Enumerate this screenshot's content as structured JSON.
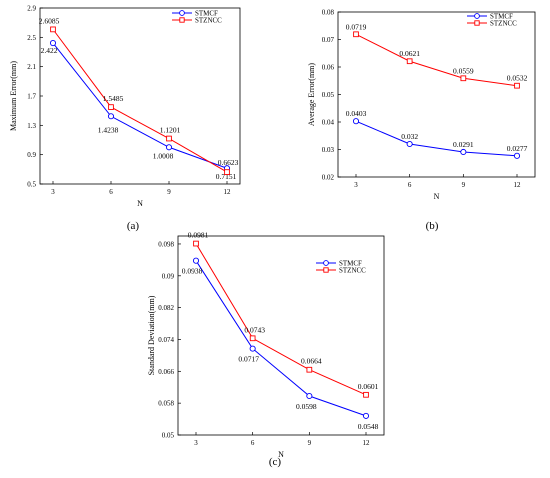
{
  "chart_data": [
    {
      "type": "line",
      "caption": "(a)",
      "xlabel": "N",
      "ylabel": "Maximum Error(mm)",
      "x": [
        3,
        6,
        9,
        12
      ],
      "xticks": [
        "3",
        "6",
        "9",
        "12"
      ],
      "ylim": [
        0.5,
        2.9
      ],
      "yticks": [
        "0.5",
        "0.9",
        "1.3",
        "1.7",
        "2.1",
        "2.5",
        "2.9"
      ],
      "legend_position": "top-right",
      "series": [
        {
          "name": "STMCF",
          "color": "#0000ff",
          "marker": "circle",
          "values": [
            2.422,
            1.4238,
            1.0008,
            0.7151
          ],
          "labels": [
            "2.422",
            "1.4238",
            "1.0008",
            "0.7151"
          ]
        },
        {
          "name": "STZNCC",
          "color": "#ff0000",
          "marker": "square",
          "values": [
            2.6085,
            1.5485,
            1.1201,
            0.6623
          ],
          "labels": [
            "2.6085",
            "1.5485",
            "1.1201",
            "0.6623"
          ]
        }
      ]
    },
    {
      "type": "line",
      "caption": "(b)",
      "xlabel": "N",
      "ylabel": "Average Error(mm)",
      "x": [
        3,
        6,
        9,
        12
      ],
      "xticks": [
        "3",
        "6",
        "9",
        "12"
      ],
      "ylim": [
        0.02,
        0.08
      ],
      "yticks": [
        "0.02",
        "0.03",
        "0.04",
        "0.05",
        "0.06",
        "0.07",
        "0.08"
      ],
      "legend_position": "top-right",
      "series": [
        {
          "name": "STMCF",
          "color": "#0000ff",
          "marker": "circle",
          "values": [
            0.0403,
            0.032,
            0.0291,
            0.0277
          ],
          "labels": [
            "0.0403",
            "0.032",
            "0.0291",
            "0.0277"
          ]
        },
        {
          "name": "STZNCC",
          "color": "#ff0000",
          "marker": "square",
          "values": [
            0.0719,
            0.0621,
            0.0559,
            0.0532
          ],
          "labels": [
            "0.0719",
            "0.0621",
            "0.0559",
            "0.0532"
          ]
        }
      ]
    },
    {
      "type": "line",
      "caption": "(c)",
      "xlabel": "N",
      "ylabel": "Standard Deviation(mm)",
      "x": [
        3,
        6,
        9,
        12
      ],
      "xticks": [
        "3",
        "6",
        "9",
        "12"
      ],
      "ylim": [
        0.05,
        0.1
      ],
      "yticks": [
        "0.05",
        "0.058",
        "0.066",
        "0.074",
        "0.082",
        "0.09",
        "0.098"
      ],
      "legend_position": "top-right",
      "series": [
        {
          "name": "STMCF",
          "color": "#0000ff",
          "marker": "circle",
          "values": [
            0.0938,
            0.0717,
            0.0598,
            0.0548
          ],
          "labels": [
            "0.0938",
            "0.0717",
            "0.0598",
            "0.0548"
          ]
        },
        {
          "name": "STZNCC",
          "color": "#ff0000",
          "marker": "square",
          "values": [
            0.0981,
            0.0743,
            0.0664,
            0.0601
          ],
          "labels": [
            "0.0981",
            "0.0743",
            "0.0664",
            "0.0601"
          ]
        }
      ]
    }
  ]
}
